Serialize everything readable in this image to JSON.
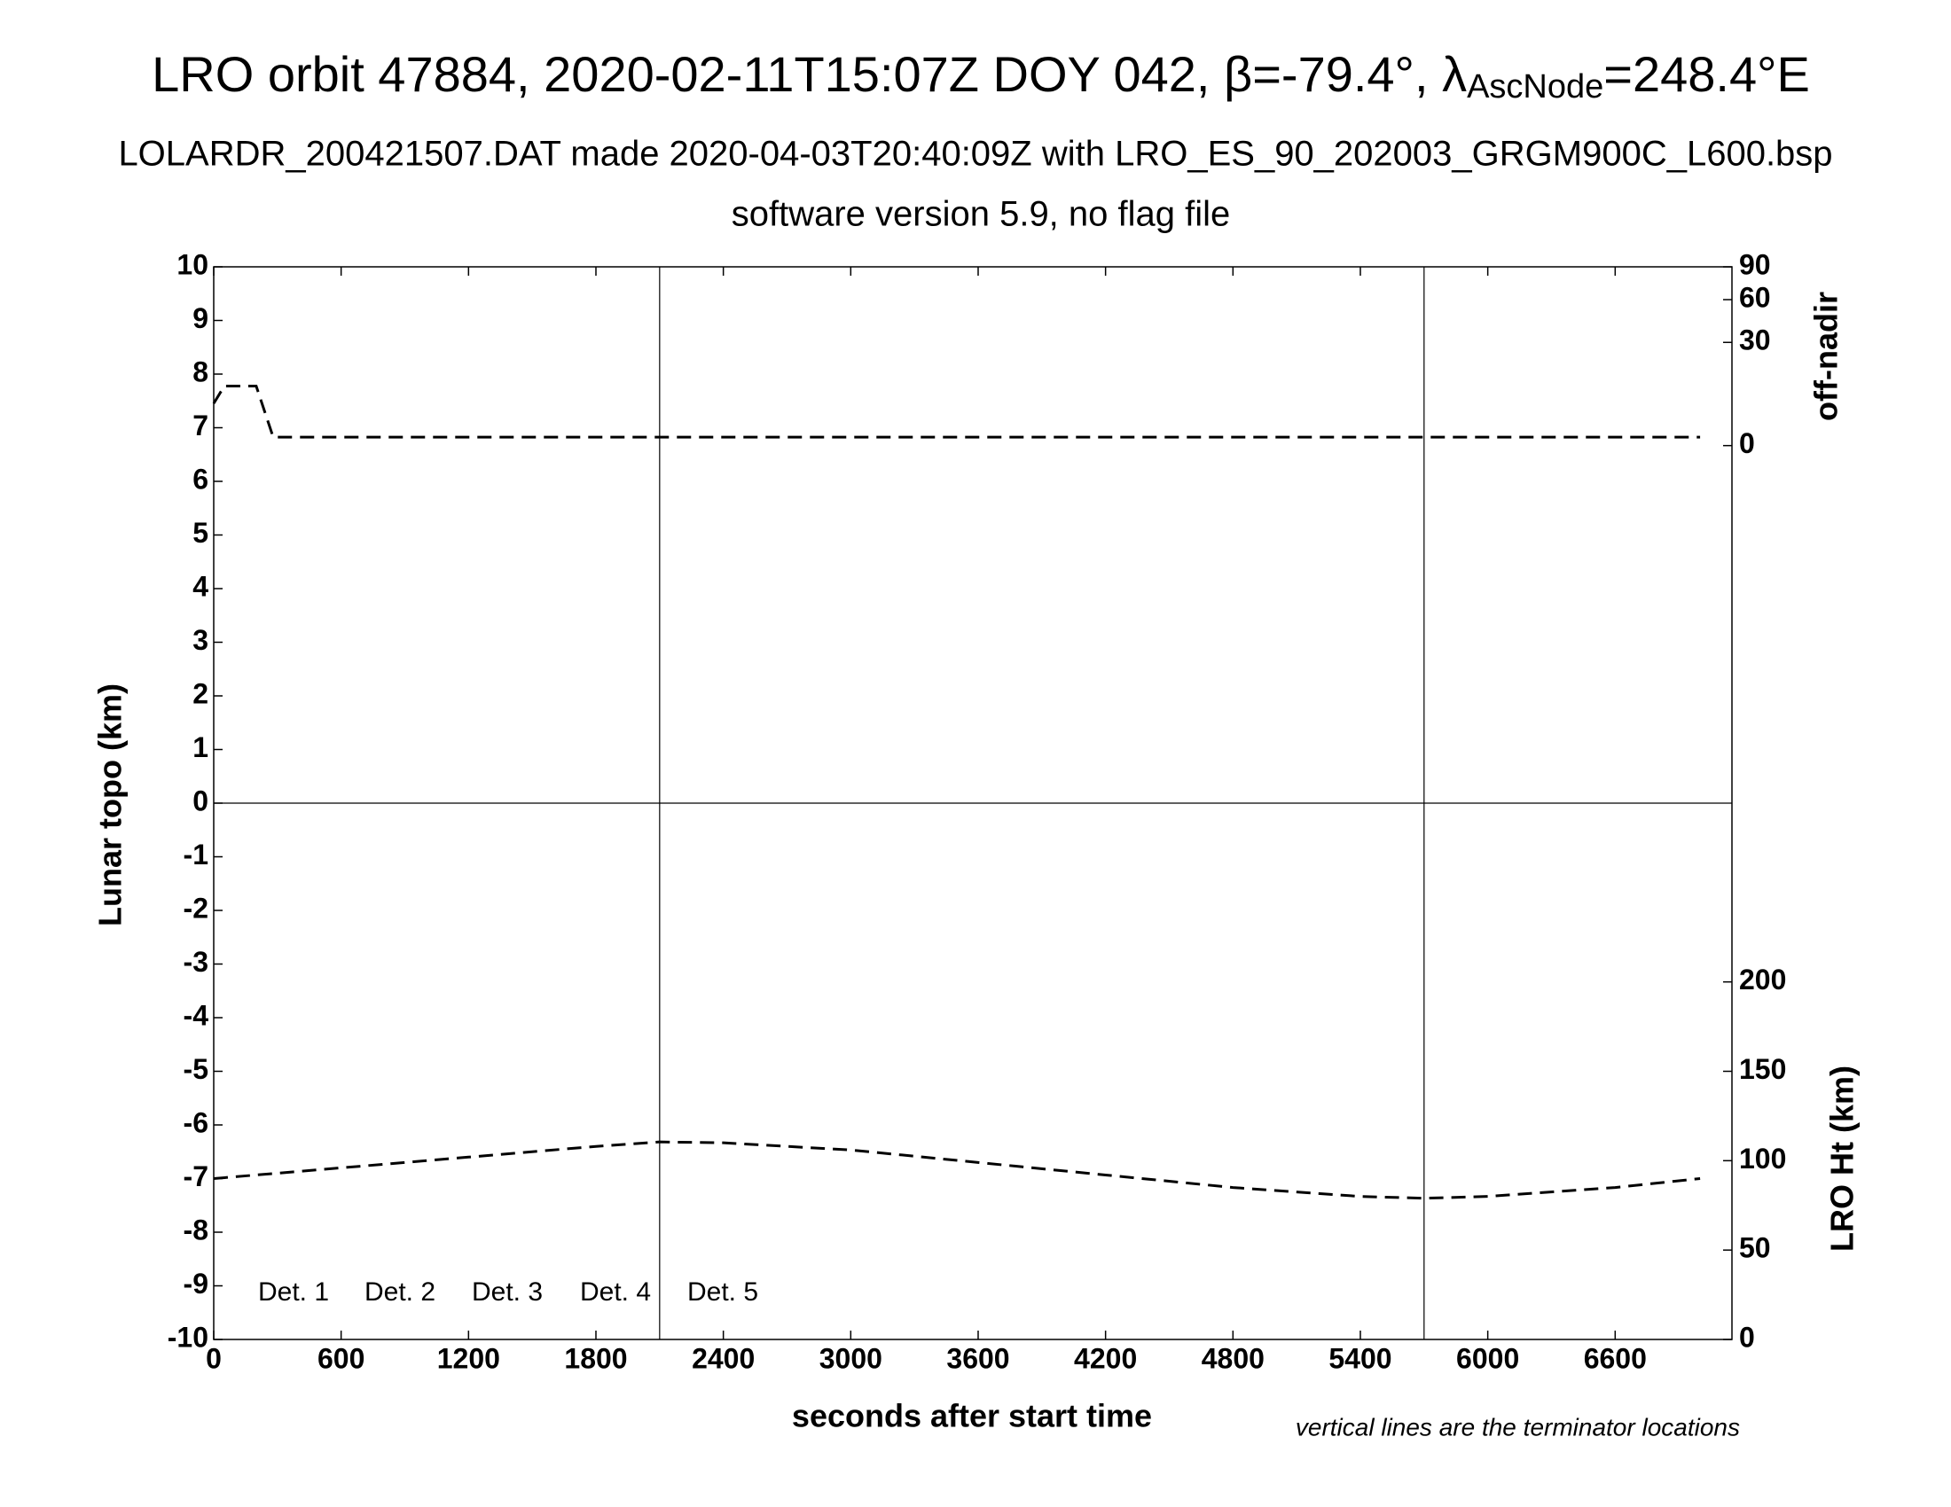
{
  "chart_data": {
    "type": "line",
    "title": {
      "before": "LRO orbit 47884, 2020-02-11T15:07Z DOY 042, β=-79.4°, λ",
      "subscript": "AscNode",
      "after": "=248.4°E"
    },
    "subtitle": "LOLARDR_200421507.DAT made 2020-04-03T20:40:09Z with LRO_ES_90_202003_GRGM900C_L600.bsp",
    "subtitle2": "software version 5.9, no flag file",
    "xlabel": "seconds after start time",
    "ylabel": "Lunar topo (km)",
    "y2label": "LRO Ht (km)",
    "y3label": "off-nadir",
    "note": "vertical lines are the terminator locations",
    "xlim": [
      0,
      7150
    ],
    "xticks": [
      0,
      600,
      1200,
      1800,
      2400,
      3000,
      3600,
      4200,
      4800,
      5400,
      6000,
      6600
    ],
    "ylim": [
      -10,
      10
    ],
    "yticks": [
      -10,
      -9,
      -8,
      -7,
      -6,
      -5,
      -4,
      -3,
      -2,
      -1,
      0,
      1,
      2,
      3,
      4,
      5,
      6,
      7,
      8,
      9,
      10
    ],
    "y2lim": [
      0,
      600
    ],
    "y2ticks": [
      0,
      50,
      100,
      150,
      200
    ],
    "y3lim": [
      0,
      90
    ],
    "y3scale": "sqrt",
    "y3ticks": [
      0,
      30,
      60,
      90
    ],
    "terminators": [
      2100,
      5700
    ],
    "detectors": [
      {
        "name": "Det. 1",
        "color": "#000000"
      },
      {
        "name": "Det. 2",
        "color": "#0000ff"
      },
      {
        "name": "Det. 3",
        "color": "#00ee00"
      },
      {
        "name": "Det. 4",
        "color": "#ffa500"
      },
      {
        "name": "Det. 5",
        "color": "#ff0000"
      }
    ],
    "series": [
      {
        "axis": "y3",
        "color": "#000000",
        "x": [
          0,
          50,
          200,
          280,
          7000
        ],
        "values": [
          5,
          10,
          10,
          0.2,
          0.2
        ]
      },
      {
        "axis": "y2",
        "color": "#000000",
        "x": [
          0,
          600,
          1200,
          1800,
          2100,
          2400,
          3000,
          3600,
          4200,
          4800,
          5400,
          5700,
          6000,
          6600,
          7000
        ],
        "values": [
          90,
          96,
          102,
          108,
          110.5,
          110,
          106,
          99,
          92,
          85,
          80,
          79,
          80,
          85,
          90
        ]
      }
    ]
  }
}
